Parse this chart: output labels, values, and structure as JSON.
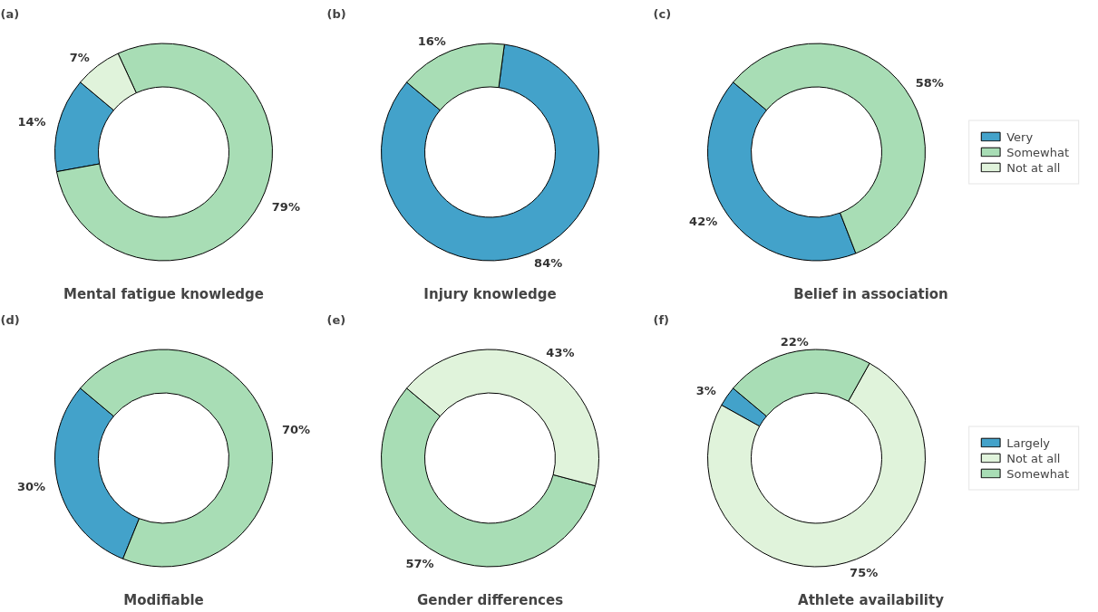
{
  "chart_data": [
    {
      "type": "donut",
      "title": "(a)",
      "subtitle": "Mental fatigue knowledge",
      "categories": [
        null,
        null,
        null
      ],
      "values": [
        14,
        79,
        7
      ],
      "value_labels": [
        "14%",
        "79%",
        "7%"
      ],
      "colors": [
        "#43a2ca",
        "#a8ddb5",
        "#e0f3db"
      ]
    },
    {
      "type": "donut",
      "title": "(b)",
      "subtitle": "Injury knowledge",
      "categories": [
        null,
        null
      ],
      "values": [
        84,
        16
      ],
      "value_labels": [
        "84%",
        "16%"
      ],
      "colors": [
        "#43a2ca",
        "#a8ddb5"
      ]
    },
    {
      "type": "donut",
      "title": "(c)",
      "subtitle": "Belief in association",
      "categories": [
        "Very",
        "Somewhat",
        "Not at all"
      ],
      "values": [
        42,
        58,
        null
      ],
      "value_labels": [
        "42%",
        "58%",
        null
      ],
      "colors": [
        "#43a2ca",
        "#a8ddb5",
        "#e0f3db"
      ],
      "legend": "right"
    },
    {
      "type": "donut",
      "title": "(d)",
      "subtitle": "Modifiable",
      "categories": [
        null,
        null
      ],
      "values": [
        30,
        70
      ],
      "value_labels": [
        "30%",
        "70%"
      ],
      "colors": [
        "#43a2ca",
        "#a8ddb5"
      ]
    },
    {
      "type": "donut",
      "title": "(e)",
      "subtitle": "Gender differences",
      "categories": [
        null,
        null
      ],
      "values": [
        57,
        43
      ],
      "value_labels": [
        "57%",
        "43%"
      ],
      "colors": [
        "#a8ddb5",
        "#e0f3db"
      ]
    },
    {
      "type": "donut",
      "title": "(f)",
      "subtitle": "Athlete availability",
      "categories": [
        "Largely",
        "Not at all",
        "Somewhat"
      ],
      "values": [
        3,
        75,
        22
      ],
      "value_labels": [
        "3%",
        "75%",
        "22%"
      ],
      "colors": [
        "#43a2ca",
        "#e0f3db",
        "#a8ddb5"
      ],
      "legend": "right"
    }
  ]
}
